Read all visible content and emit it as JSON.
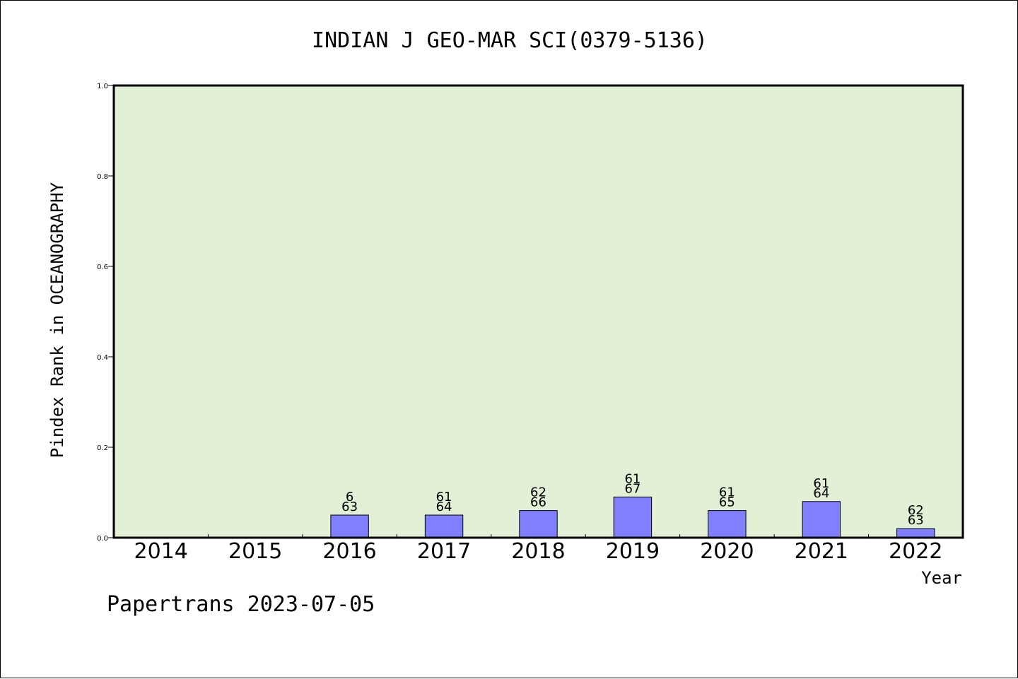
{
  "chart_data": {
    "type": "bar",
    "title": "INDIAN J GEO-MAR SCI(0379-5136)",
    "xlabel": "Year",
    "ylabel": "Pindex Rank in OCEANOGRAPHY",
    "categories": [
      "2014",
      "2015",
      "2016",
      "2017",
      "2018",
      "2019",
      "2020",
      "2021",
      "2022"
    ],
    "values": [
      0,
      0,
      0.05,
      0.05,
      0.06,
      0.09,
      0.06,
      0.08,
      0.02
    ],
    "bar_labels": [
      [
        "",
        ""
      ],
      [
        "",
        ""
      ],
      [
        "6",
        "63"
      ],
      [
        "61",
        "64"
      ],
      [
        "62",
        "66"
      ],
      [
        "61",
        "67"
      ],
      [
        "61",
        "65"
      ],
      [
        "61",
        "64"
      ],
      [
        "62",
        "63"
      ]
    ],
    "ylim": [
      0,
      1.0
    ],
    "yticks": [
      "0.0",
      "0.2",
      "0.4",
      "0.6",
      "0.8",
      "1.0"
    ],
    "grid": false,
    "plot_background": "#e2f0d6",
    "bar_color": "#8080ff"
  },
  "footer": "Papertrans 2023-07-05"
}
